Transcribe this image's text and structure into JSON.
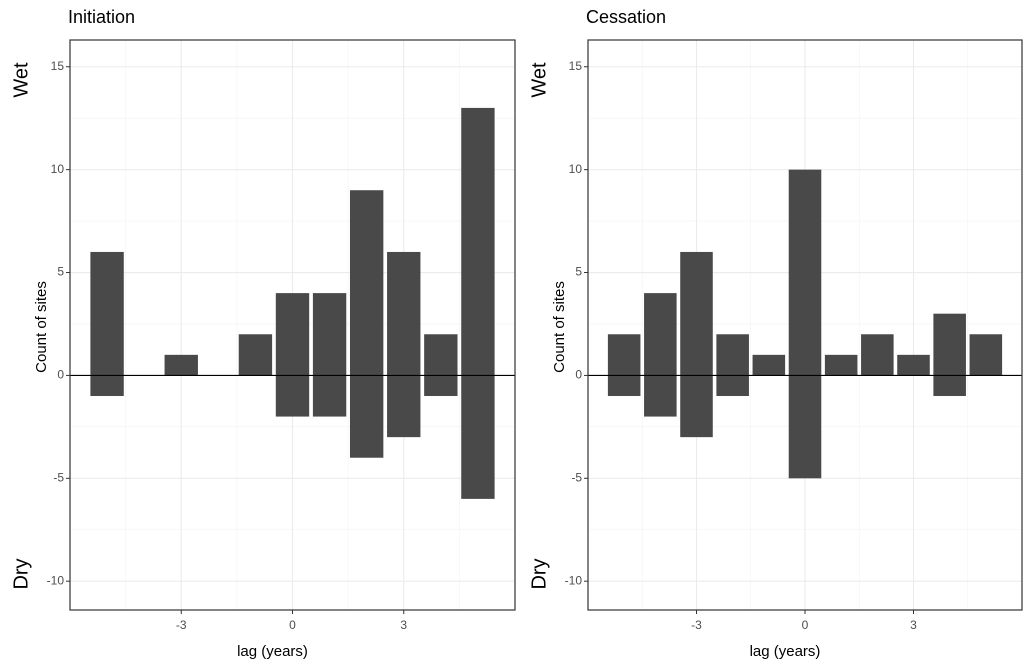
{
  "chart_data": [
    {
      "type": "bar",
      "title": "Initiation",
      "annotations": [
        "Wet",
        "Dry"
      ],
      "ylabel": "Count of sites",
      "xlabel": "lag (years)",
      "x": [
        -5,
        -3,
        -1,
        0,
        1,
        2,
        3,
        4,
        5
      ],
      "series": [
        {
          "values": [
            6,
            1,
            2,
            4,
            4,
            9,
            6,
            2,
            13
          ]
        },
        {
          "values": [
            -1,
            null,
            null,
            -2,
            -2,
            -4,
            -3,
            -1,
            -6
          ]
        }
      ],
      "color": "#494949",
      "xlim": [
        -6,
        6
      ],
      "xticks": [
        -3,
        0,
        3
      ],
      "ylim": [
        -11.4,
        16.3
      ],
      "yticks": [
        -10,
        -5,
        0,
        5,
        10,
        15
      ],
      "hline": 0,
      "grid": true
    },
    {
      "type": "bar",
      "title": "Cessation",
      "annotations": [
        "Wet",
        "Dry"
      ],
      "ylabel": "Count of sites",
      "xlabel": "lag (years)",
      "x": [
        -5,
        -4,
        -3,
        -2,
        -1,
        0,
        1,
        2,
        3,
        4,
        5
      ],
      "series": [
        {
          "values": [
            2,
            4,
            6,
            2,
            1,
            10,
            1,
            2,
            1,
            3,
            2
          ]
        },
        {
          "values": [
            -1,
            -2,
            -3,
            -1,
            null,
            -5,
            null,
            null,
            null,
            -1,
            null
          ]
        }
      ],
      "color": "#494949",
      "xlim": [
        -6,
        6
      ],
      "xticks": [
        -3,
        0,
        3
      ],
      "ylim": [
        -11.4,
        16.3
      ],
      "yticks": [
        -10,
        -5,
        0,
        5,
        10,
        15
      ],
      "hline": 0,
      "grid": true
    }
  ]
}
